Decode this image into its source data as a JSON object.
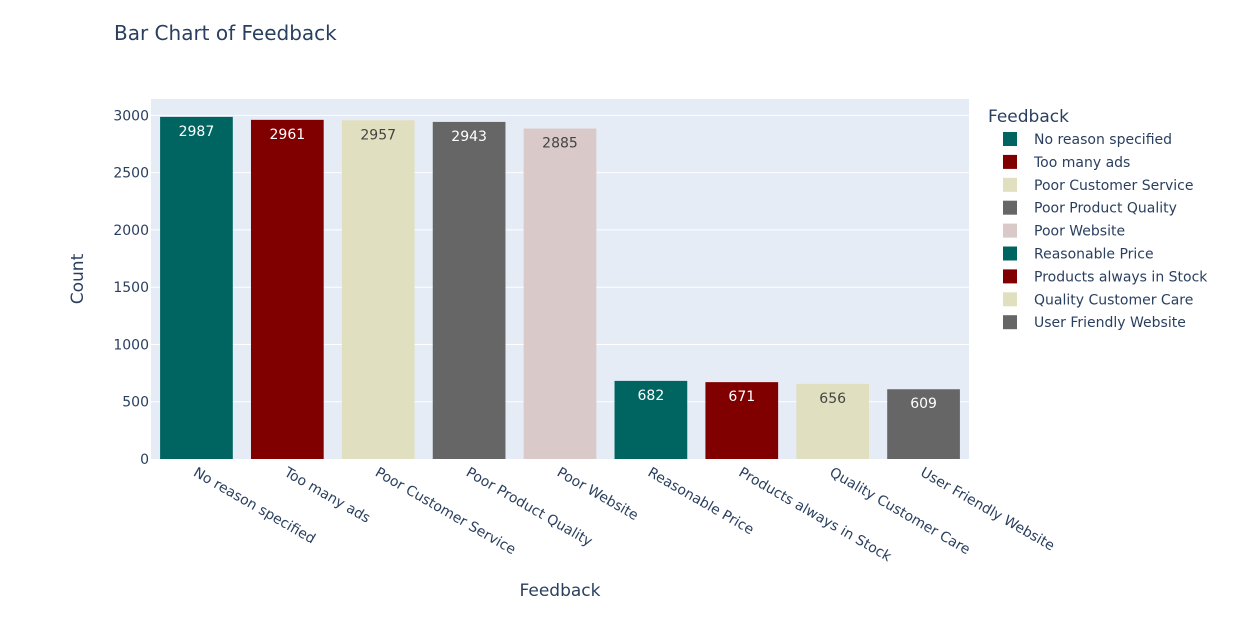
{
  "chart_data": {
    "type": "bar",
    "title": "Bar Chart of Feedback",
    "xlabel": "Feedback",
    "ylabel": "Count",
    "ylim": [
      0,
      3143
    ],
    "yticks": [
      0,
      500,
      1000,
      1500,
      2000,
      2500,
      3000
    ],
    "grid": true,
    "legend_title": "Feedback",
    "legend_position": "right",
    "categories": [
      "No reason specified",
      "Too many ads",
      "Poor Customer Service",
      "Poor Product Quality",
      "Poor Website",
      "Reasonable Price",
      "Products always in Stock",
      "Quality Customer Care",
      "User Friendly Website"
    ],
    "values": [
      2987,
      2961,
      2957,
      2943,
      2885,
      682,
      671,
      656,
      609
    ],
    "colors": [
      "#006561",
      "#800000",
      "#e0e0c0",
      "#666666",
      "#d9c9c9",
      "#006561",
      "#800000",
      "#e0e0c0",
      "#666666"
    ],
    "label_colors": [
      "#ffffff",
      "#ffffff",
      "#444444",
      "#ffffff",
      "#444444",
      "#ffffff",
      "#ffffff",
      "#444444",
      "#ffffff"
    ]
  }
}
